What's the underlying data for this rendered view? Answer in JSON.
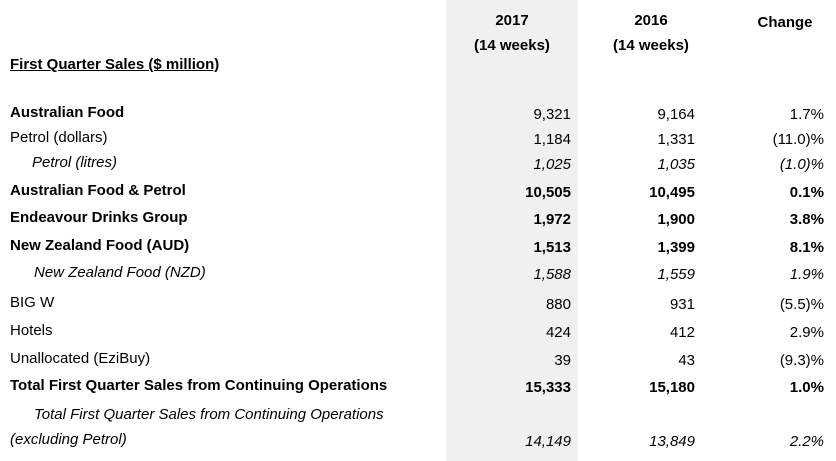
{
  "header": {
    "col_2017": [
      "2017",
      "(14 weeks)"
    ],
    "col_2016": [
      "2016",
      "(14 weeks)"
    ],
    "col_change": "Change"
  },
  "title": "First Quarter Sales ($ million)",
  "rows": [
    {
      "label": "Australian Food",
      "v2017": "9,321",
      "v2016": "9,164",
      "change": "1.7%",
      "style": "bold-label"
    },
    {
      "label": "Petrol (dollars)",
      "v2017": "1,184",
      "v2016": "1,331",
      "change": "(11.0)%",
      "style": "normal"
    },
    {
      "label": "Petrol (litres)",
      "v2017": "1,025",
      "v2016": "1,035",
      "change": "(1.0)%",
      "style": "italic"
    },
    {
      "label": "Australian Food & Petrol",
      "v2017": "10,505",
      "v2016": "10,495",
      "change": "0.1%",
      "style": "bold"
    },
    {
      "label": "Endeavour Drinks Group",
      "v2017": "1,972",
      "v2016": "1,900",
      "change": "3.8%",
      "style": "bold"
    },
    {
      "label": "New Zealand Food (AUD)",
      "v2017": "1,513",
      "v2016": "1,399",
      "change": "8.1%",
      "style": "bold"
    },
    {
      "label": "New Zealand Food (NZD)",
      "v2017": "1,588",
      "v2016": "1,559",
      "change": "1.9%",
      "style": "italic"
    },
    {
      "label": "BIG W",
      "v2017": "880",
      "v2016": "931",
      "change": "(5.5)%",
      "style": "normal"
    },
    {
      "label": "Hotels",
      "v2017": "424",
      "v2016": "412",
      "change": "2.9%",
      "style": "normal"
    },
    {
      "label": "Unallocated (EziBuy)",
      "v2017": "39",
      "v2016": "43",
      "change": "(9.3)%",
      "style": "normal"
    },
    {
      "label": "Total First Quarter Sales from Continuing Operations",
      "v2017": "15,333",
      "v2016": "15,180",
      "change": "1.0%",
      "style": "bold"
    }
  ],
  "footer_row": {
    "label_line1": "Total First Quarter Sales from Continuing Operations",
    "label_line2": "(excluding Petrol)",
    "v2017": "14,149",
    "v2016": "13,849",
    "change": "2.2%"
  }
}
